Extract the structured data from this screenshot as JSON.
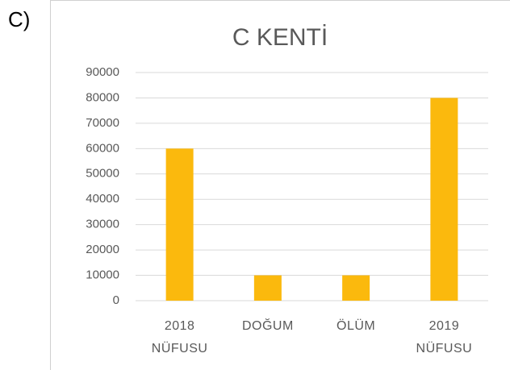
{
  "option_label": "C)",
  "chart_data": {
    "type": "bar",
    "title": "C KENTİ",
    "categories": [
      "2018 NÜFUSU",
      "DOĞUM",
      "ÖLÜM",
      "2019 NÜFUSU"
    ],
    "values": [
      60000,
      10000,
      10000,
      80000
    ],
    "color": "#fbb90d",
    "ylim": [
      0,
      90000
    ],
    "yticks": [
      0,
      10000,
      20000,
      30000,
      40000,
      50000,
      60000,
      70000,
      80000,
      90000
    ],
    "grid": true
  }
}
